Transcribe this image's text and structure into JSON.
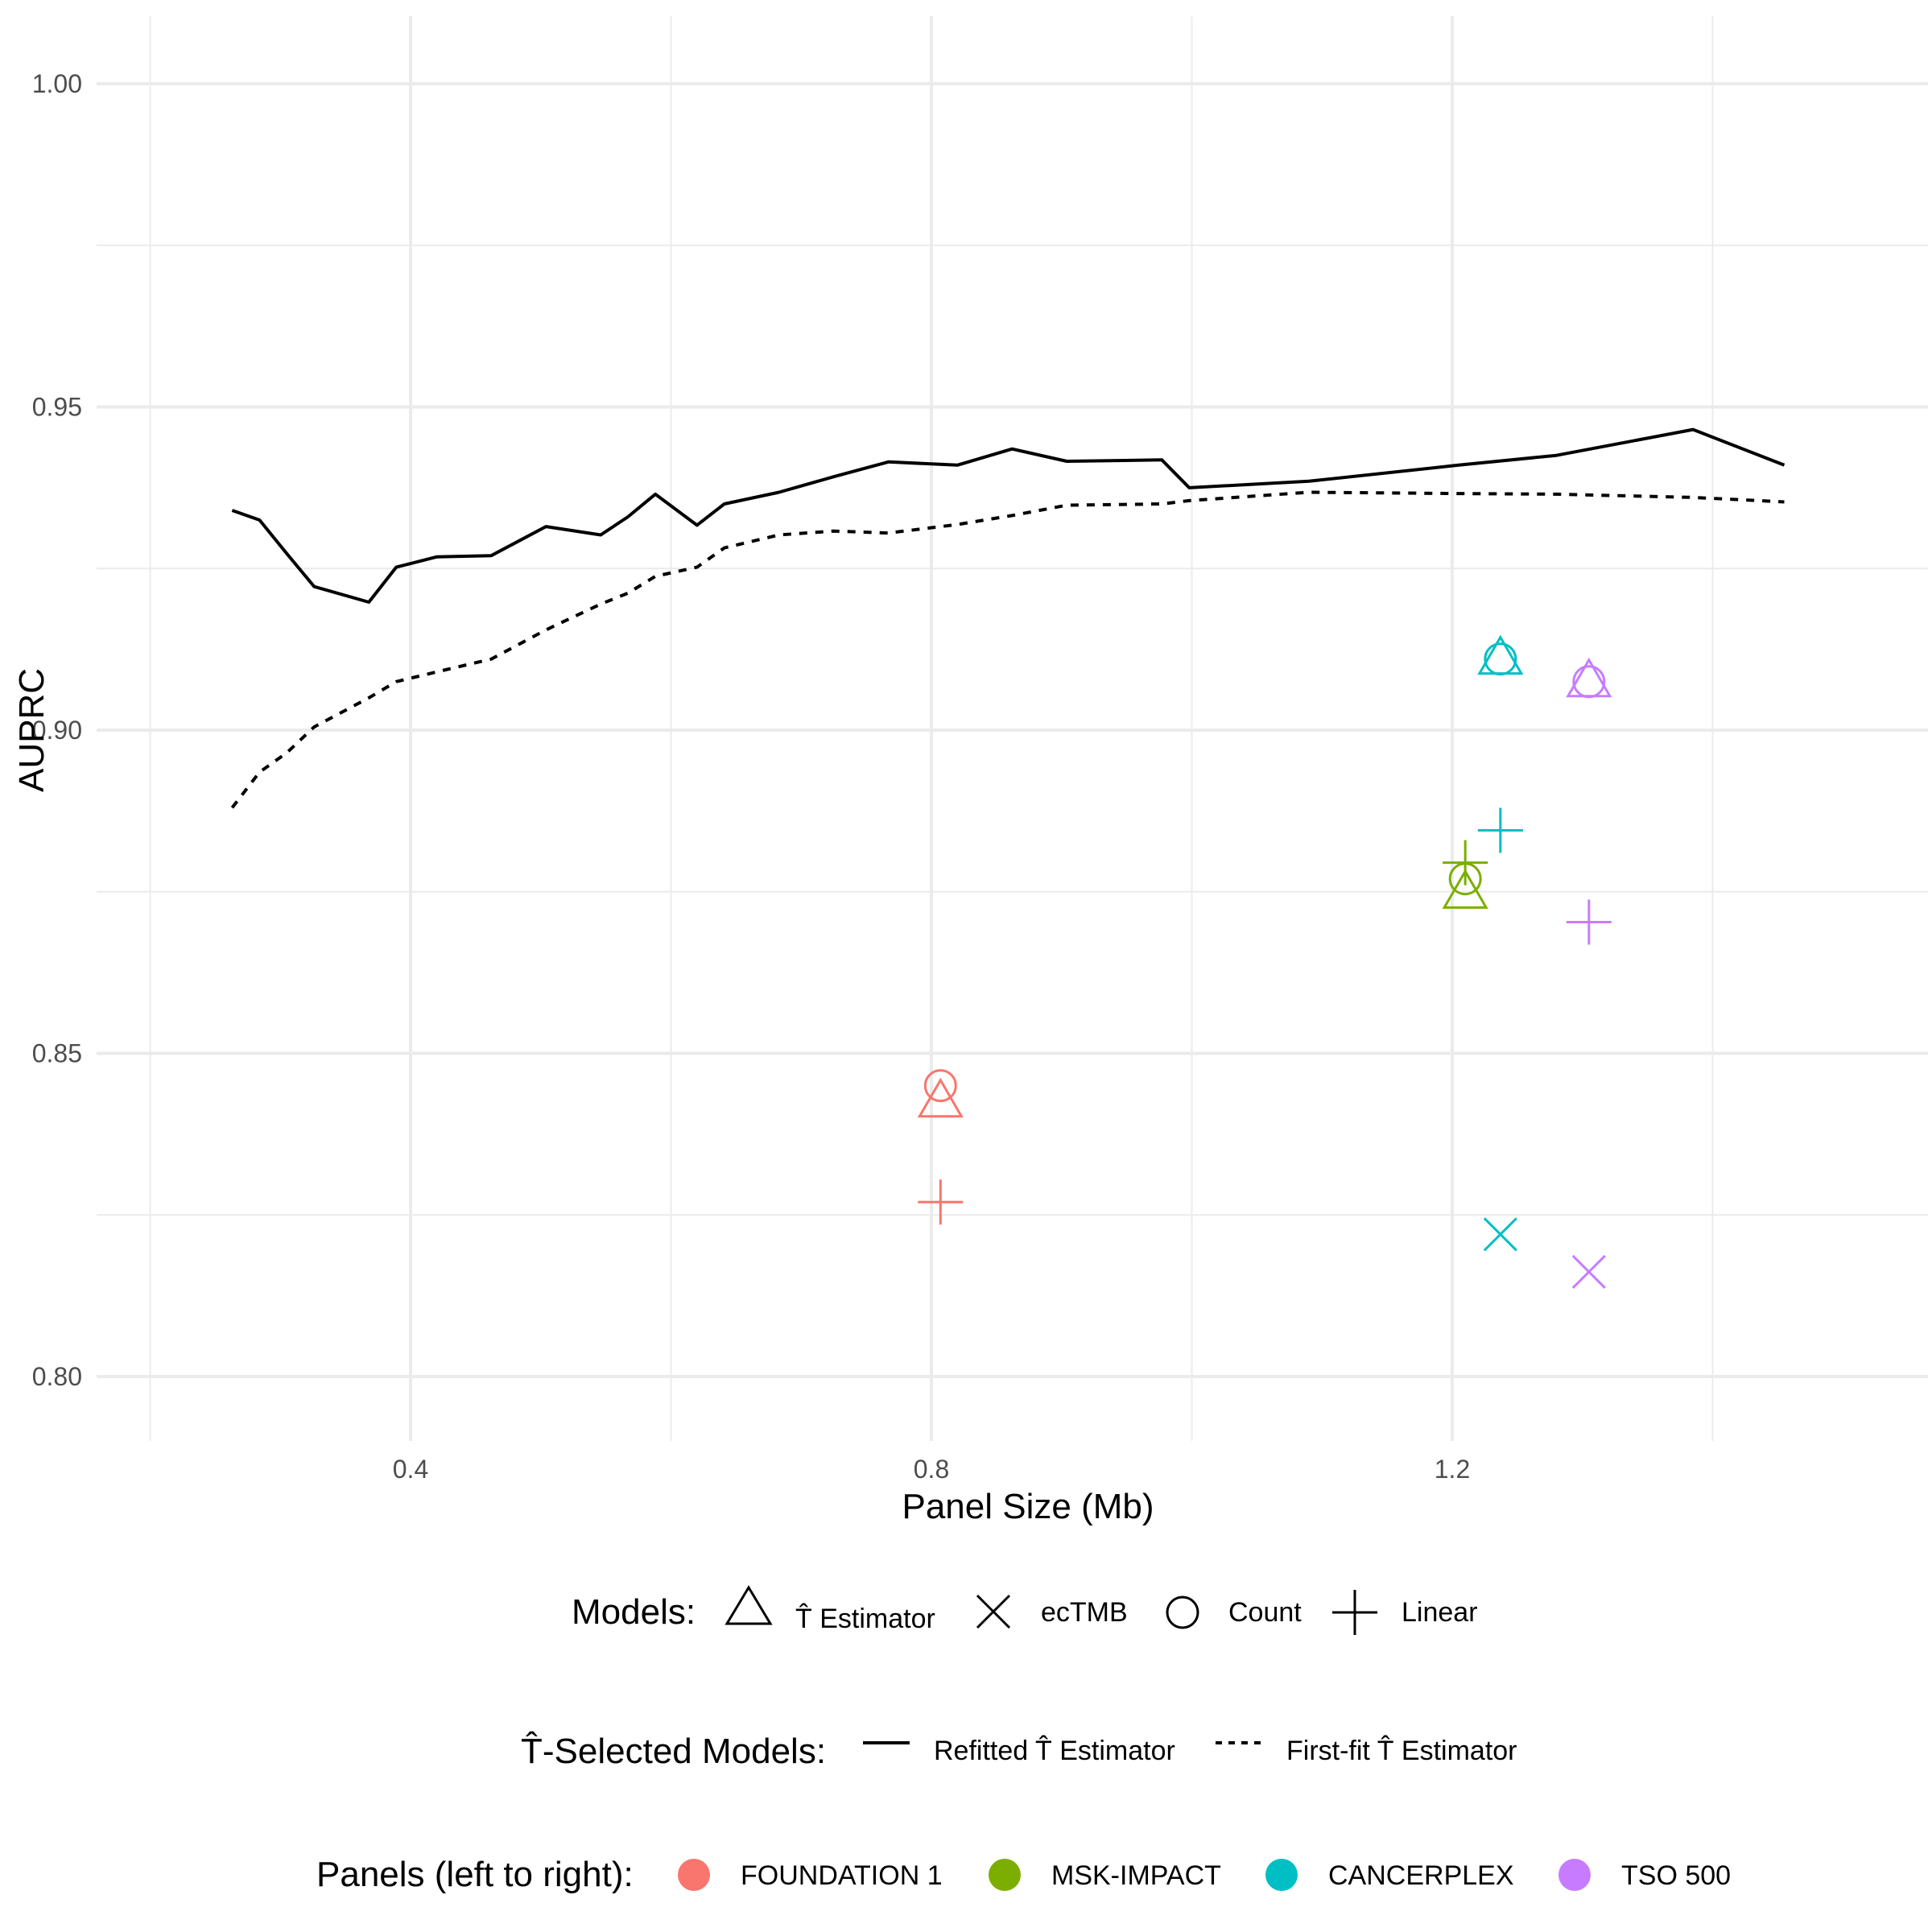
{
  "chart_data": {
    "type": "scatter",
    "xlabel": "Panel Size (Mb)",
    "ylabel": "AUPRC",
    "xlim": [
      0.2,
      1.57
    ],
    "ylim": [
      0.79,
      1.005
    ],
    "x_ticks": [
      0.4,
      0.8,
      1.2
    ],
    "x_tick_labels": [
      "0.4",
      "0.8",
      "1.2"
    ],
    "y_ticks": [
      0.8,
      0.85,
      0.9,
      0.95,
      1.0
    ],
    "y_tick_labels": [
      "0.80",
      "0.85",
      "0.90",
      "0.95",
      "1.00"
    ],
    "grid": true,
    "legend_position": "bottom",
    "lines": [
      {
        "name": "Refitted T̂ Estimator",
        "style": "solid",
        "x": [
          0.263,
          0.284,
          0.305,
          0.326,
          0.368,
          0.389,
          0.42,
          0.462,
          0.504,
          0.546,
          0.567,
          0.588,
          0.62,
          0.641,
          0.683,
          0.725,
          0.767,
          0.82,
          0.862,
          0.904,
          0.977,
          0.998,
          1.09,
          1.205,
          1.28,
          1.385,
          1.455
        ],
        "y": [
          0.934,
          0.9325,
          0.9273,
          0.9222,
          0.9198,
          0.9252,
          0.9268,
          0.927,
          0.9315,
          0.9302,
          0.933,
          0.9365,
          0.9317,
          0.935,
          0.9368,
          0.9392,
          0.9415,
          0.941,
          0.9435,
          0.9416,
          0.9418,
          0.9375,
          0.9385,
          0.941,
          0.9425,
          0.9465,
          0.941
        ]
      },
      {
        "name": "First-fit T̂ Estimator",
        "style": "dashed",
        "x": [
          0.263,
          0.284,
          0.305,
          0.326,
          0.368,
          0.389,
          0.42,
          0.462,
          0.504,
          0.546,
          0.567,
          0.588,
          0.62,
          0.641,
          0.683,
          0.725,
          0.767,
          0.82,
          0.862,
          0.904,
          0.977,
          0.998,
          1.09,
          1.205,
          1.28,
          1.385,
          1.455
        ],
        "y": [
          0.888,
          0.8935,
          0.8965,
          0.9005,
          0.905,
          0.9075,
          0.909,
          0.911,
          0.9155,
          0.9195,
          0.9212,
          0.9238,
          0.9252,
          0.9282,
          0.9302,
          0.9308,
          0.9305,
          0.9318,
          0.9332,
          0.9348,
          0.935,
          0.9355,
          0.9368,
          0.9366,
          0.9365,
          0.936,
          0.9353
        ]
      }
    ],
    "panels": [
      {
        "name": "FOUNDATION 1",
        "color": "#F8766D"
      },
      {
        "name": "MSK-IMPACT",
        "color": "#7CAE00"
      },
      {
        "name": "CANCERPLEX",
        "color": "#00BFC4"
      },
      {
        "name": "TSO 500",
        "color": "#C77CFF"
      }
    ],
    "models": [
      {
        "name": "T̂ Estimator",
        "shape": "triangle"
      },
      {
        "name": "ecTMB",
        "shape": "cross"
      },
      {
        "name": "Count",
        "shape": "circle"
      },
      {
        "name": "Linear",
        "shape": "plus"
      }
    ],
    "points": [
      {
        "panel": "FOUNDATION 1",
        "model": "T̂ Estimator",
        "x": 0.807,
        "y": 0.8425
      },
      {
        "panel": "FOUNDATION 1",
        "model": "Count",
        "x": 0.807,
        "y": 0.845
      },
      {
        "panel": "FOUNDATION 1",
        "model": "Linear",
        "x": 0.807,
        "y": 0.827
      },
      {
        "panel": "MSK-IMPACT",
        "model": "T̂ Estimator",
        "x": 1.21,
        "y": 0.8748
      },
      {
        "panel": "MSK-IMPACT",
        "model": "Count",
        "x": 1.21,
        "y": 0.877
      },
      {
        "panel": "MSK-IMPACT",
        "model": "Linear",
        "x": 1.21,
        "y": 0.8795
      },
      {
        "panel": "CANCERPLEX",
        "model": "T̂ Estimator",
        "x": 1.237,
        "y": 0.911
      },
      {
        "panel": "CANCERPLEX",
        "model": "Count",
        "x": 1.237,
        "y": 0.911
      },
      {
        "panel": "CANCERPLEX",
        "model": "Linear",
        "x": 1.237,
        "y": 0.8845
      },
      {
        "panel": "CANCERPLEX",
        "model": "ecTMB",
        "x": 1.237,
        "y": 0.822
      },
      {
        "panel": "TSO 500",
        "model": "T̂ Estimator",
        "x": 1.305,
        "y": 0.9075
      },
      {
        "panel": "TSO 500",
        "model": "Count",
        "x": 1.305,
        "y": 0.9075
      },
      {
        "panel": "TSO 500",
        "model": "Linear",
        "x": 1.305,
        "y": 0.8703
      },
      {
        "panel": "TSO 500",
        "model": "ecTMB",
        "x": 1.305,
        "y": 0.8162
      }
    ]
  },
  "legend": {
    "models_title": "Models:",
    "models_items": [
      "T̂ Estimator",
      "ecTMB",
      "Count",
      "Linear"
    ],
    "selected_title": "T̂-Selected Models:",
    "selected_items": [
      "Refitted T̂ Estimator",
      "First-fit T̂ Estimator"
    ],
    "panels_title": "Panels (left to right):",
    "panels_items": [
      "FOUNDATION 1",
      "MSK-IMPACT",
      "CANCERPLEX",
      "TSO 500"
    ]
  },
  "colors": {
    "grid": "#ebebeb",
    "line": "#000000",
    "legend_glyph": "#000000"
  }
}
